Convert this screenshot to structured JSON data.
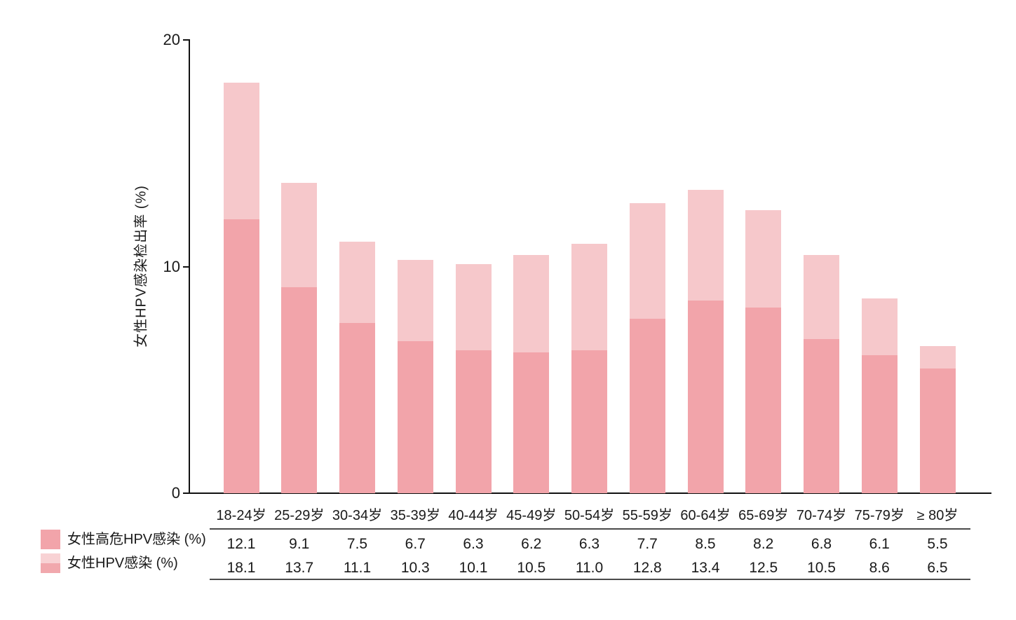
{
  "chart_data": {
    "type": "bar",
    "title": "",
    "xlabel": "",
    "ylabel": "女性HPV感染检出率 (%)",
    "ylim": [
      0,
      20
    ],
    "yticks": [
      0,
      10,
      20
    ],
    "grid": false,
    "legend_position": "bottom-left-table",
    "bar_style": "overlaid",
    "categories": [
      "18-24岁",
      "25-29岁",
      "30-34岁",
      "35-39岁",
      "40-44岁",
      "45-49岁",
      "50-54岁",
      "55-59岁",
      "60-64岁",
      "65-69岁",
      "70-74岁",
      "75-79岁",
      "≥ 80岁"
    ],
    "series": [
      {
        "name": "女性高危HPV感染 (%)",
        "color": "#F2A4AA",
        "swatch_colors": [
          "#F2A4AA"
        ],
        "values": [
          12.1,
          9.1,
          7.5,
          6.7,
          6.3,
          6.2,
          6.3,
          7.7,
          8.5,
          8.2,
          6.8,
          6.1,
          5.5
        ]
      },
      {
        "name": "女性HPV感染 (%)",
        "color": "#F6C8CB",
        "swatch_colors": [
          "#F8D2D4",
          "#F1A8AD"
        ],
        "values": [
          18.1,
          13.7,
          11.1,
          10.3,
          10.1,
          10.5,
          11.0,
          12.8,
          13.4,
          12.5,
          10.5,
          8.6,
          6.5
        ]
      }
    ]
  },
  "colors": {
    "axis": "#111111",
    "text": "#1a1a1a",
    "table_rule": "#4a4a4a",
    "background": "#ffffff"
  }
}
